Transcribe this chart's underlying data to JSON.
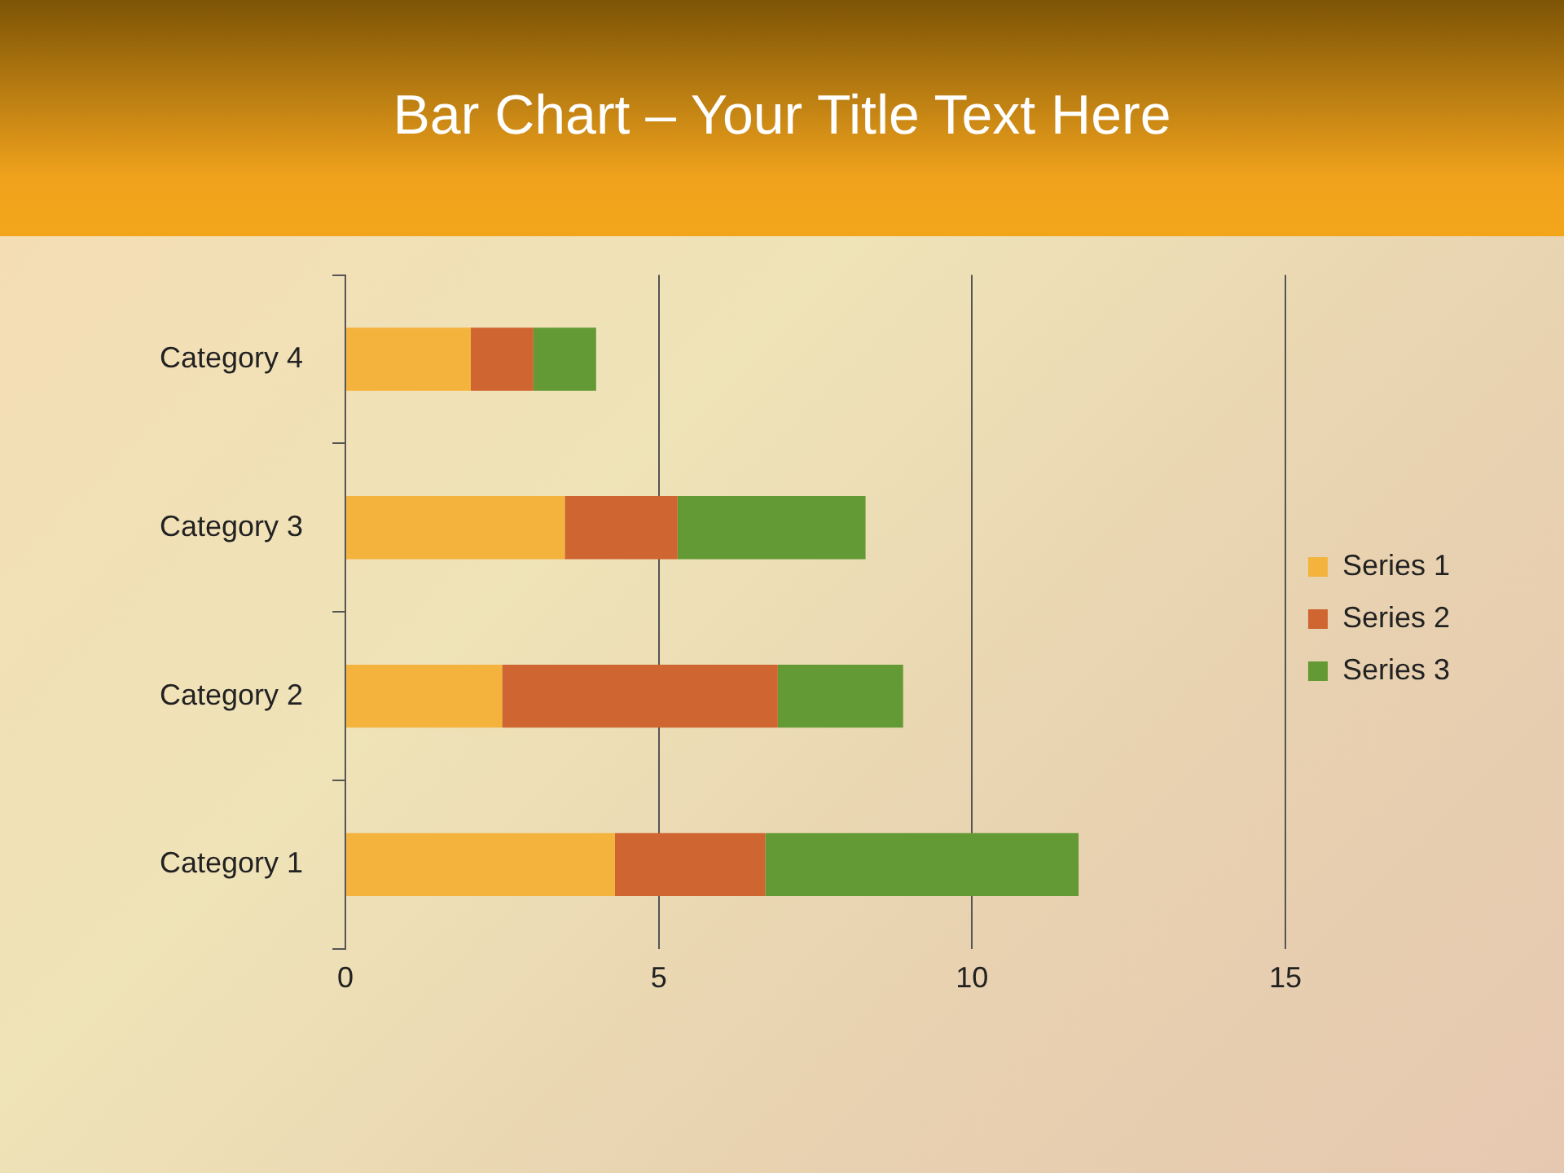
{
  "chart_data": {
    "type": "bar",
    "title": "Bar Chart – Your Title Text Here",
    "orientation": "horizontal",
    "stacked": true,
    "categories": [
      "Category 4",
      "Category 3",
      "Category 2",
      "Category 1"
    ],
    "series": [
      {
        "name": "Series 1",
        "color": "#f3b33d",
        "values": [
          2,
          3.5,
          2.5,
          4.3
        ]
      },
      {
        "name": "Series 2",
        "color": "#cf6531",
        "values": [
          1,
          1.8,
          4.4,
          2.4
        ]
      },
      {
        "name": "Series 3",
        "color": "#639a35",
        "values": [
          1,
          3,
          2,
          5
        ]
      }
    ],
    "xlim": [
      0,
      15
    ],
    "xticks": [
      0,
      5,
      10,
      15
    ],
    "grid": "x",
    "legend": "right"
  }
}
